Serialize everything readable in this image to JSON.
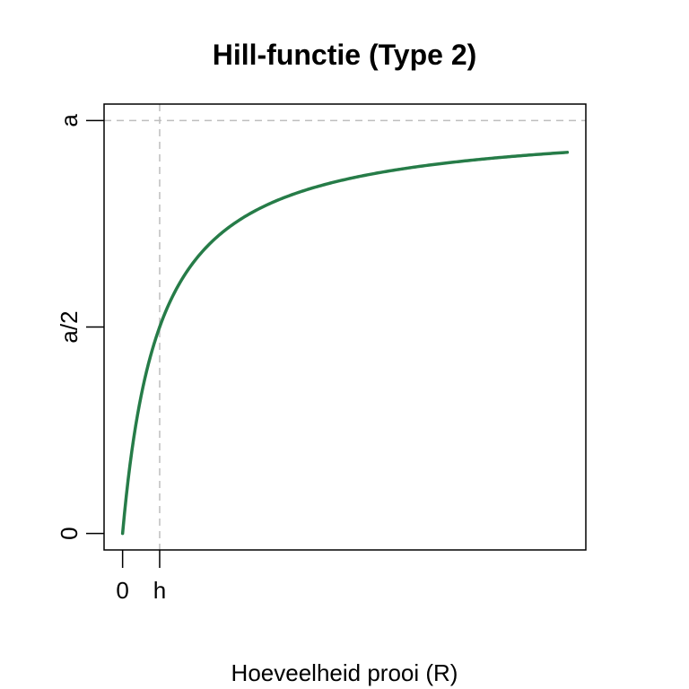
{
  "chart_data": {
    "type": "line",
    "title": "Hill-functie (Type 2)",
    "xlabel": "Hoeveelheid prooi (R)",
    "ylabel": "",
    "function": "y = a * R / (h + R)",
    "params": {
      "a": 1,
      "h": 1
    },
    "x_range": [
      0,
      12
    ],
    "xlim": [
      -0.5,
      12.5
    ],
    "ylim": [
      -0.04,
      1.04
    ],
    "x_ticks": [
      {
        "value": 0,
        "label": "0"
      },
      {
        "value": 1,
        "label": "h"
      }
    ],
    "y_ticks": [
      {
        "value": 0,
        "label": "0"
      },
      {
        "value": 0.5,
        "label": "a/2"
      },
      {
        "value": 1,
        "label": "a"
      }
    ],
    "reference_lines": [
      {
        "orientation": "horizontal",
        "value": 1,
        "style": "dashed"
      },
      {
        "orientation": "vertical",
        "value": 1,
        "style": "dashed"
      }
    ],
    "grid": false,
    "line_color": "#267C48",
    "ref_line_color": "#BEBEBE"
  }
}
